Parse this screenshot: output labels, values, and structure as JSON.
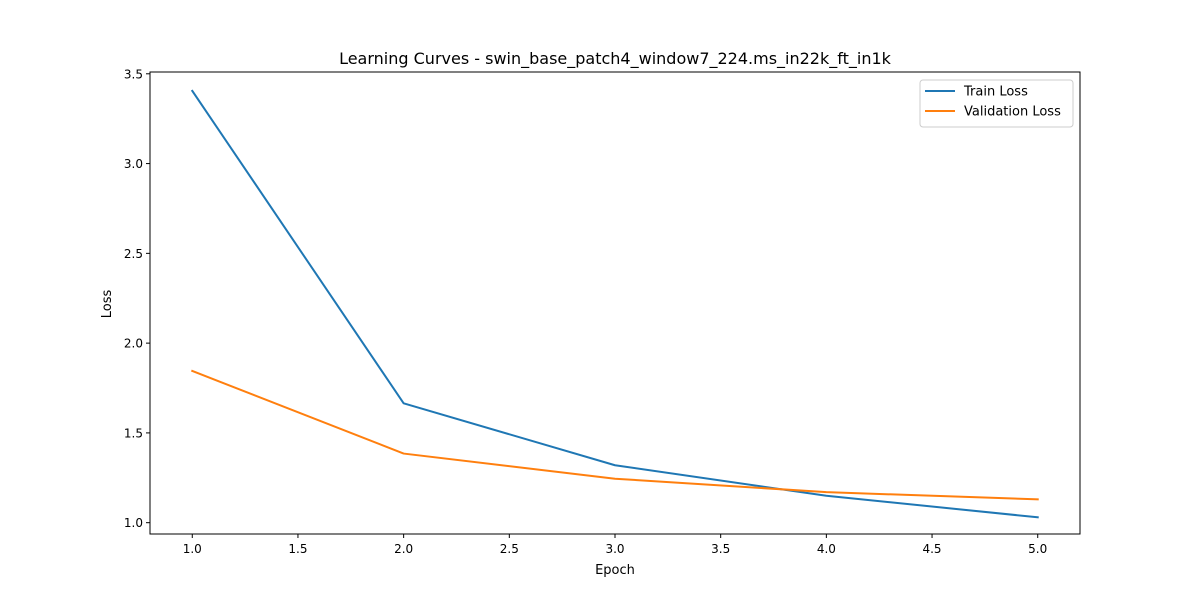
{
  "chart_data": {
    "type": "line",
    "title": "Learning Curves - swin_base_patch4_window7_224.ms_in22k_ft_in1k",
    "xlabel": "Epoch",
    "ylabel": "Loss",
    "xlim": [
      0.8,
      5.2
    ],
    "ylim": [
      0.937,
      3.51
    ],
    "x_ticks": [
      1.0,
      1.5,
      2.0,
      2.5,
      3.0,
      3.5,
      4.0,
      4.5,
      5.0
    ],
    "x_tick_labels": [
      "1.0",
      "1.5",
      "2.0",
      "2.5",
      "3.0",
      "3.5",
      "4.0",
      "4.5",
      "5.0"
    ],
    "y_ticks": [
      1.0,
      1.5,
      2.0,
      2.5,
      3.0,
      3.5
    ],
    "y_tick_labels": [
      "1.0",
      "1.5",
      "2.0",
      "2.5",
      "3.0",
      "3.5"
    ],
    "x": [
      1,
      2,
      3,
      4,
      5
    ],
    "series": [
      {
        "name": "Train Loss",
        "color": "#1f77b4",
        "values": [
          3.405,
          1.665,
          1.32,
          1.15,
          1.03
        ]
      },
      {
        "name": "Validation Loss",
        "color": "#ff7f0e",
        "values": [
          1.845,
          1.385,
          1.245,
          1.17,
          1.13
        ]
      }
    ],
    "legend": {
      "position": "top-right",
      "entries": [
        "Train Loss",
        "Validation Loss"
      ]
    },
    "grid": false
  }
}
